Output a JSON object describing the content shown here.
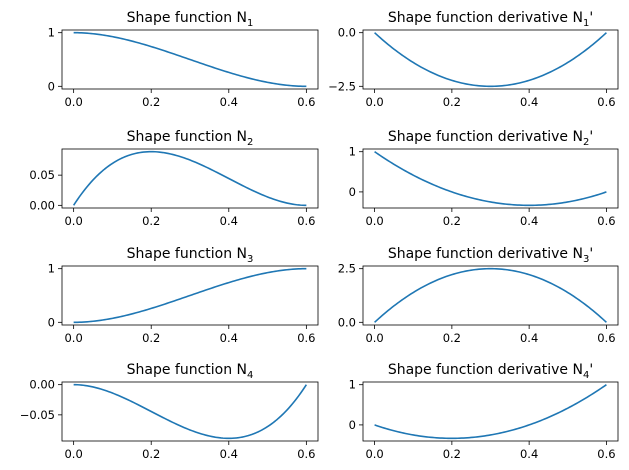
{
  "chart_data": [
    {
      "id": "n1",
      "type": "line",
      "title": "Shape function N",
      "subscript": "1",
      "prime": "",
      "x_range": [
        0,
        0.6
      ],
      "xlim": [
        -0.03,
        0.63
      ],
      "ylim": [
        -0.05,
        1.05
      ],
      "xticks": [
        0,
        0.2,
        0.4,
        0.6
      ],
      "xtick_labels": [
        "0.0",
        "0.2",
        "0.4",
        "0.6"
      ],
      "yticks": [
        0,
        1
      ],
      "ytick_labels": [
        "0",
        "1"
      ],
      "series": [
        {
          "name": "N1",
          "coefficients": [
            1,
            0,
            -8.333333,
            9.259259
          ]
        }
      ]
    },
    {
      "id": "dn1",
      "type": "line",
      "title": "Shape function derivative N",
      "subscript": "1",
      "prime": "'",
      "x_range": [
        0,
        0.6
      ],
      "xlim": [
        -0.03,
        0.63
      ],
      "ylim": [
        -2.625,
        0.125
      ],
      "xticks": [
        0,
        0.2,
        0.4,
        0.6
      ],
      "xtick_labels": [
        "0.0",
        "0.2",
        "0.4",
        "0.6"
      ],
      "yticks": [
        0,
        -2.5
      ],
      "ytick_labels": [
        "0.0",
        "−2.5"
      ],
      "series": [
        {
          "name": "N1'",
          "coefficients": [
            0,
            -16.666667,
            27.777778
          ]
        }
      ]
    },
    {
      "id": "n2",
      "type": "line",
      "title": "Shape function N",
      "subscript": "2",
      "prime": "",
      "x_range": [
        0,
        0.6
      ],
      "xlim": [
        -0.03,
        0.63
      ],
      "ylim": [
        -0.0044,
        0.0933
      ],
      "xticks": [
        0,
        0.2,
        0.4,
        0.6
      ],
      "xtick_labels": [
        "0.0",
        "0.2",
        "0.4",
        "0.6"
      ],
      "yticks": [
        0,
        0.05
      ],
      "ytick_labels": [
        "0.00",
        "0.05"
      ],
      "series": [
        {
          "name": "N2",
          "coefficients": [
            0,
            1,
            -3.333333,
            2.777778
          ]
        }
      ]
    },
    {
      "id": "dn2",
      "type": "line",
      "title": "Shape function derivative N",
      "subscript": "2",
      "prime": "'",
      "x_range": [
        0,
        0.6
      ],
      "xlim": [
        -0.03,
        0.63
      ],
      "ylim": [
        -0.4,
        1.067
      ],
      "xticks": [
        0,
        0.2,
        0.4,
        0.6
      ],
      "xtick_labels": [
        "0.0",
        "0.2",
        "0.4",
        "0.6"
      ],
      "yticks": [
        0,
        1
      ],
      "ytick_labels": [
        "0",
        "1"
      ],
      "series": [
        {
          "name": "N2'",
          "coefficients": [
            1,
            -6.666667,
            8.333333
          ]
        }
      ]
    },
    {
      "id": "n3",
      "type": "line",
      "title": "Shape function N",
      "subscript": "3",
      "prime": "",
      "x_range": [
        0,
        0.6
      ],
      "xlim": [
        -0.03,
        0.63
      ],
      "ylim": [
        -0.05,
        1.05
      ],
      "xticks": [
        0,
        0.2,
        0.4,
        0.6
      ],
      "xtick_labels": [
        "0.0",
        "0.2",
        "0.4",
        "0.6"
      ],
      "yticks": [
        0,
        1
      ],
      "ytick_labels": [
        "0",
        "1"
      ],
      "series": [
        {
          "name": "N3",
          "coefficients": [
            0,
            0,
            8.333333,
            -9.259259
          ]
        }
      ]
    },
    {
      "id": "dn3",
      "type": "line",
      "title": "Shape function derivative N",
      "subscript": "3",
      "prime": "'",
      "x_range": [
        0,
        0.6
      ],
      "xlim": [
        -0.03,
        0.63
      ],
      "ylim": [
        -0.125,
        2.625
      ],
      "xticks": [
        0,
        0.2,
        0.4,
        0.6
      ],
      "xtick_labels": [
        "0.0",
        "0.2",
        "0.4",
        "0.6"
      ],
      "yticks": [
        0,
        2.5
      ],
      "ytick_labels": [
        "0.0",
        "2.5"
      ],
      "series": [
        {
          "name": "N3'",
          "coefficients": [
            0,
            16.666667,
            -27.777778
          ]
        }
      ]
    },
    {
      "id": "n4",
      "type": "line",
      "title": "Shape function N",
      "subscript": "4",
      "prime": "",
      "x_range": [
        0,
        0.6
      ],
      "xlim": [
        -0.03,
        0.63
      ],
      "ylim": [
        -0.0933,
        0.0044
      ],
      "xticks": [
        0,
        0.2,
        0.4,
        0.6
      ],
      "xtick_labels": [
        "0.0",
        "0.2",
        "0.4",
        "0.6"
      ],
      "yticks": [
        0,
        -0.05
      ],
      "ytick_labels": [
        "0.00",
        "−0.05"
      ],
      "series": [
        {
          "name": "N4",
          "coefficients": [
            0,
            0,
            -1.666667,
            2.777778
          ]
        }
      ]
    },
    {
      "id": "dn4",
      "type": "line",
      "title": "Shape function derivative N",
      "subscript": "4",
      "prime": "'",
      "x_range": [
        0,
        0.6
      ],
      "xlim": [
        -0.03,
        0.63
      ],
      "ylim": [
        -0.4,
        1.067
      ],
      "xticks": [
        0,
        0.2,
        0.4,
        0.6
      ],
      "xtick_labels": [
        "0.0",
        "0.2",
        "0.4",
        "0.6"
      ],
      "yticks": [
        0,
        1
      ],
      "ytick_labels": [
        "0",
        "1"
      ],
      "series": [
        {
          "name": "N4'",
          "coefficients": [
            0,
            -3.333333,
            8.333333
          ]
        }
      ]
    }
  ],
  "colors": {
    "line": "#1f77b4",
    "axes": "#000000",
    "background": "#ffffff"
  }
}
